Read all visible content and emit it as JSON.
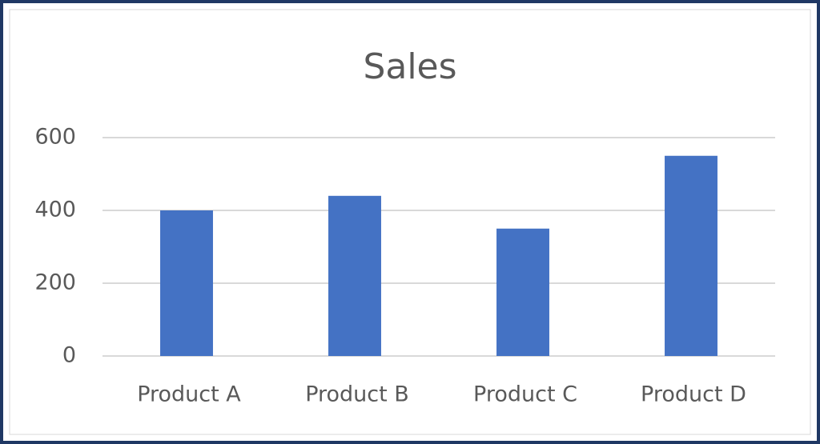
{
  "chart_data": {
    "type": "bar",
    "title": "Sales",
    "categories": [
      "Product A",
      "Product B",
      "Product C",
      "Product D"
    ],
    "values": [
      400,
      440,
      350,
      550
    ],
    "color": "#4472c4",
    "ylim": [
      0,
      600
    ],
    "yticks": [
      0,
      200,
      400,
      600
    ],
    "grid": true
  }
}
